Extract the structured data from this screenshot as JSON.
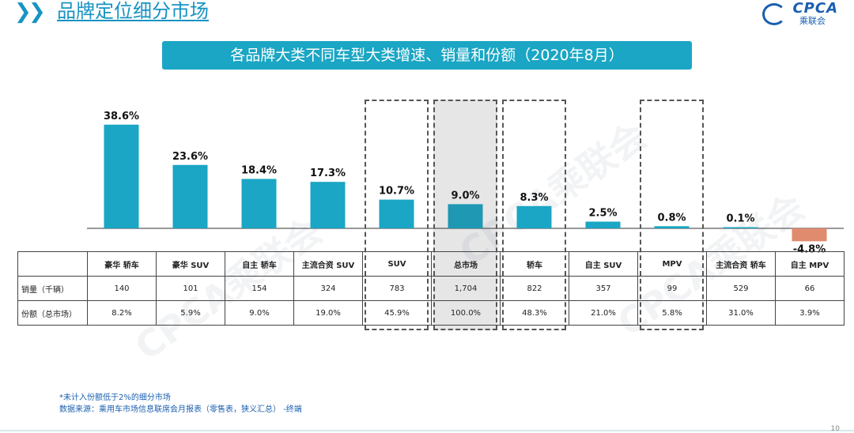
{
  "header": {
    "title": "品牌定位细分市场",
    "logo_text": "CPCA",
    "logo_sub": "乘联会"
  },
  "banner": {
    "text": "各品牌大类不同车型大类增速、销量和份额（2020年8月）"
  },
  "watermark": "CPCA乘联会",
  "colors": {
    "bar": "#1aa6c4",
    "negative_bar": "#e08a6e",
    "accent": "#1793c4"
  },
  "chart_data": {
    "type": "bar",
    "categories": [
      "豪华 轿车",
      "豪华 SUV",
      "自主 轿车",
      "主流合资 SUV",
      "SUV",
      "总市场",
      "轿车",
      "自主 SUV",
      "MPV",
      "主流合资 轿车",
      "自主 MPV"
    ],
    "values": [
      38.6,
      23.6,
      18.4,
      17.3,
      10.7,
      9.0,
      8.3,
      2.5,
      0.8,
      0.1,
      -4.8
    ],
    "value_labels": [
      "38.6%",
      "23.6%",
      "18.4%",
      "17.3%",
      "10.7%",
      "9.0%",
      "8.3%",
      "2.5%",
      "0.8%",
      "0.1%",
      "-4.8%"
    ],
    "ylim": [
      -8,
      42
    ],
    "grid": false,
    "highlighted": [
      "SUV",
      "总市场",
      "轿车",
      "MPV"
    ]
  },
  "table": {
    "rows": [
      {
        "label": "销量（千辆）",
        "values": [
          "140",
          "101",
          "154",
          "324",
          "783",
          "1,704",
          "822",
          "357",
          "99",
          "529",
          "66"
        ]
      },
      {
        "label": "份额（总市场）",
        "values": [
          "8.2%",
          "5.9%",
          "9.0%",
          "19.0%",
          "45.9%",
          "100.0%",
          "48.3%",
          "21.0%",
          "5.8%",
          "31.0%",
          "3.9%"
        ]
      }
    ]
  },
  "footnote": {
    "line1": "*未计入份额低于2%的细分市场",
    "line2": "数据来源：乘用车市场信息联席会月报表（零售表，狭义汇总）  -终端"
  },
  "page_number": "10"
}
